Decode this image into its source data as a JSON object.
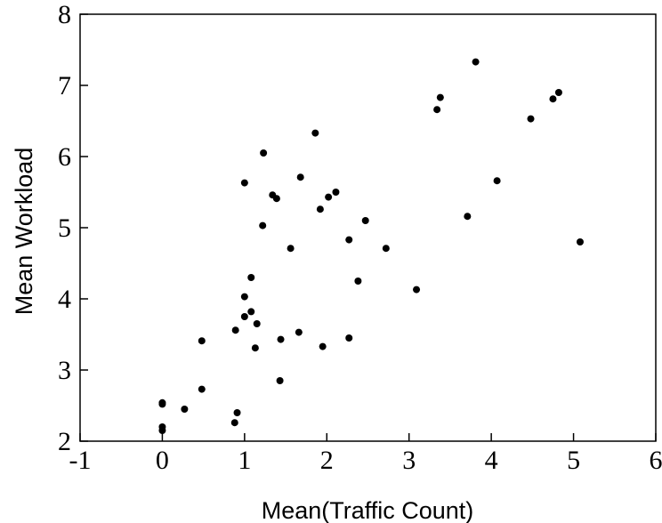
{
  "chart_data": {
    "type": "scatter",
    "xlabel": "Mean(Traffic Count)",
    "ylabel": "Mean Workload",
    "xlim": [
      -1,
      6
    ],
    "ylim": [
      2,
      8
    ],
    "x_ticks": [
      -1,
      0,
      1,
      2,
      3,
      4,
      5,
      6
    ],
    "y_ticks": [
      2,
      3,
      4,
      5,
      6,
      7,
      8
    ],
    "x_tick_labels": [
      "-1",
      "0",
      "1",
      "2",
      "3",
      "4",
      "5",
      "6"
    ],
    "y_tick_labels": [
      "2",
      "3",
      "4",
      "5",
      "6",
      "7",
      "8"
    ],
    "grid": false,
    "point_color": "#000000",
    "series": [
      {
        "points": [
          [
            0.0,
            2.54
          ],
          [
            0.0,
            2.52
          ],
          [
            0.0,
            2.2
          ],
          [
            0.0,
            2.15
          ],
          [
            0.27,
            2.45
          ],
          [
            0.48,
            2.73
          ],
          [
            0.48,
            3.41
          ],
          [
            0.88,
            2.26
          ],
          [
            0.91,
            2.4
          ],
          [
            0.89,
            3.56
          ],
          [
            1.0,
            3.75
          ],
          [
            1.0,
            4.03
          ],
          [
            1.0,
            5.63
          ],
          [
            1.08,
            3.82
          ],
          [
            1.08,
            4.3
          ],
          [
            1.13,
            3.31
          ],
          [
            1.15,
            3.65
          ],
          [
            1.22,
            5.03
          ],
          [
            1.23,
            6.05
          ],
          [
            1.34,
            5.46
          ],
          [
            1.39,
            5.41
          ],
          [
            1.43,
            2.85
          ],
          [
            1.44,
            3.43
          ],
          [
            1.56,
            4.71
          ],
          [
            1.66,
            3.53
          ],
          [
            1.68,
            5.71
          ],
          [
            1.86,
            6.33
          ],
          [
            1.92,
            5.26
          ],
          [
            1.95,
            3.33
          ],
          [
            2.02,
            5.43
          ],
          [
            2.11,
            5.5
          ],
          [
            2.27,
            4.83
          ],
          [
            2.27,
            3.45
          ],
          [
            2.38,
            4.25
          ],
          [
            2.47,
            5.1
          ],
          [
            2.72,
            4.71
          ],
          [
            3.09,
            4.13
          ],
          [
            3.34,
            6.66
          ],
          [
            3.38,
            6.83
          ],
          [
            3.71,
            5.16
          ],
          [
            3.81,
            7.33
          ],
          [
            4.07,
            5.66
          ],
          [
            4.48,
            6.53
          ],
          [
            4.75,
            6.81
          ],
          [
            4.82,
            6.9
          ],
          [
            5.08,
            4.8
          ]
        ]
      }
    ]
  }
}
